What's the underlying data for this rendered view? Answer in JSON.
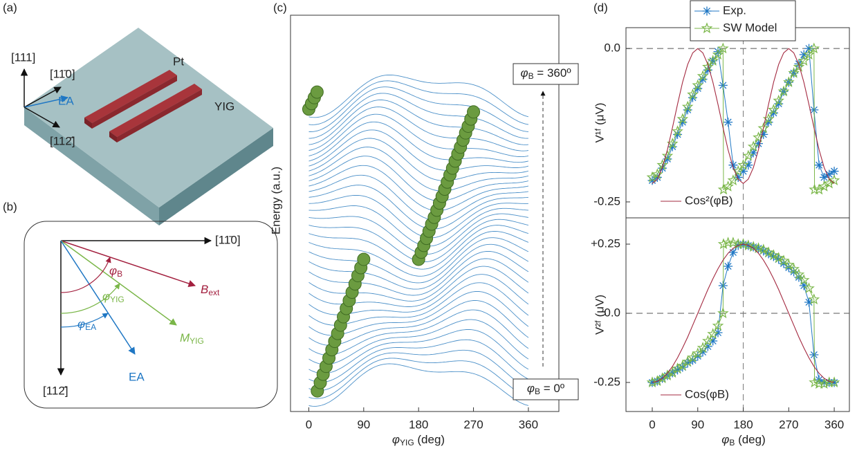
{
  "panel_a": {
    "label": "(a)",
    "axis_111": "[111]",
    "axis_110": "[11̄0]",
    "axis_112": "[112̄]",
    "ea": "EA",
    "pt": "Pt",
    "yig": "YIG"
  },
  "panel_b": {
    "label": "(b)",
    "axis_110": "[11̄0]",
    "axis_112": "[112̄]",
    "phi_b": {
      "main": "φ",
      "sub": "B"
    },
    "b_ext": {
      "main": "B",
      "sub": "ext"
    },
    "phi_yig": {
      "main": "φ",
      "sub": "YIG"
    },
    "m_yig": {
      "main": "M",
      "sub": "YIG"
    },
    "phi_ea": {
      "main": "φ",
      "sub": "EA"
    },
    "ea": "EA"
  },
  "chart_data": [
    {
      "type": "scatter",
      "label": "(c)",
      "y_label": "Energy (a.u.)",
      "x_label": {
        "main": "φ",
        "sub": "YIG",
        "rest": " (deg)"
      },
      "annotations": [
        {
          "main": "φ",
          "sub": "B",
          "rest": " = 360º"
        },
        {
          "main": "φ",
          "sub": "B",
          "rest": " = 0º"
        }
      ],
      "x": [
        14,
        18.8,
        23.5,
        28.3,
        33,
        37.8,
        42.5,
        47.3,
        52,
        56.8,
        61.5,
        66.3,
        71,
        75.8,
        80.5,
        85.3,
        90,
        180,
        184.3,
        188.6,
        192.9,
        197.1,
        201.4,
        205.7,
        210,
        214.3,
        218.6,
        222.9,
        227.1,
        231.4,
        235.7,
        240,
        244.3,
        248.6,
        252.9,
        257.1,
        261.4,
        265.7,
        270,
        0,
        4.5,
        9,
        13.5
      ],
      "y": [
        5.2,
        7.3,
        9.4,
        11.4,
        13.5,
        15.6,
        17.7,
        19.7,
        21.8,
        23.9,
        26,
        28,
        30.1,
        32.2,
        34.3,
        36.3,
        38.4,
        38.4,
        40.2,
        41.9,
        43.7,
        45.5,
        47.3,
        49,
        50.8,
        52.6,
        54.3,
        56.1,
        57.9,
        59.7,
        61.4,
        63.2,
        65,
        66.7,
        68.5,
        70.3,
        72,
        73.8,
        75.6,
        76.3,
        77.7,
        79.2,
        80.6
      ],
      "color": "#6b9b40",
      "curve_color": "#4a8fc8",
      "xlim": [
        -30,
        410
      ],
      "ylim": [
        0,
        100
      ],
      "xticks": [
        0,
        90,
        180,
        270,
        360
      ]
    },
    {
      "type": "line",
      "label": "(d)",
      "y_label": "V¹ᶠ (μV)",
      "xlim": [
        -52,
        390
      ],
      "ylim": [
        -0.276,
        0.034
      ],
      "yticks": [
        {
          "value": 0,
          "label": "0.0"
        },
        -0.25
      ],
      "hline": 0,
      "vline": 180,
      "series": [
        {
          "name": "Exp.",
          "color": "#1f77c4",
          "marker": "asterisk",
          "x": [
            0,
            10,
            20,
            30,
            40,
            50,
            60,
            70,
            80,
            90,
            100,
            110,
            120,
            130,
            140,
            150,
            160,
            170,
            180,
            190,
            200,
            210,
            220,
            230,
            240,
            250,
            260,
            270,
            280,
            290,
            300,
            310,
            320,
            330,
            340,
            350,
            360
          ],
          "values": [
            -0.215,
            -0.21,
            -0.195,
            -0.18,
            -0.16,
            -0.14,
            -0.12,
            -0.1,
            -0.08,
            -0.065,
            -0.05,
            -0.035,
            -0.02,
            -0.005,
            -0.06,
            -0.12,
            -0.19,
            -0.21,
            -0.2,
            -0.19,
            -0.17,
            -0.155,
            -0.14,
            -0.12,
            -0.105,
            -0.09,
            -0.07,
            -0.055,
            -0.04,
            -0.025,
            -0.01,
            0,
            -0.1,
            -0.19,
            -0.21,
            -0.205,
            -0.2
          ]
        },
        {
          "name": "SW Model",
          "color": "#7ab648",
          "marker": "star",
          "x": [
            0,
            10,
            20,
            30,
            40,
            50,
            60,
            70,
            80,
            90,
            100,
            110,
            120,
            130,
            140,
            141,
            150,
            160,
            170,
            180,
            190,
            200,
            210,
            220,
            230,
            240,
            250,
            260,
            270,
            280,
            290,
            300,
            310,
            320,
            321,
            330,
            340,
            350,
            360
          ],
          "values": [
            -0.21,
            -0.205,
            -0.19,
            -0.175,
            -0.155,
            -0.135,
            -0.115,
            -0.095,
            -0.075,
            -0.06,
            -0.045,
            -0.03,
            -0.02,
            -0.01,
            0,
            -0.23,
            -0.225,
            -0.215,
            -0.2,
            -0.19,
            -0.175,
            -0.16,
            -0.145,
            -0.13,
            -0.115,
            -0.1,
            -0.085,
            -0.07,
            -0.055,
            -0.04,
            -0.03,
            -0.02,
            -0.01,
            0,
            -0.23,
            -0.23,
            -0.225,
            -0.22,
            -0.215
          ]
        },
        {
          "name": "Cos²(φB)",
          "color": "#a3283f",
          "x": [
            0,
            10,
            20,
            30,
            40,
            50,
            60,
            70,
            80,
            90,
            100,
            110,
            120,
            130,
            140,
            150,
            160,
            170,
            180,
            190,
            200,
            210,
            220,
            230,
            240,
            250,
            260,
            270,
            280,
            290,
            300,
            310,
            320,
            330,
            340,
            350,
            360
          ],
          "values": [
            -0.22,
            -0.213,
            -0.194,
            -0.165,
            -0.129,
            -0.091,
            -0.055,
            -0.026,
            -0.007,
            0,
            -0.007,
            -0.026,
            -0.055,
            -0.091,
            -0.129,
            -0.165,
            -0.194,
            -0.213,
            -0.22,
            -0.213,
            -0.194,
            -0.165,
            -0.129,
            -0.091,
            -0.055,
            -0.026,
            -0.007,
            0,
            -0.007,
            -0.026,
            -0.055,
            -0.091,
            -0.129,
            -0.165,
            -0.194,
            -0.213,
            -0.22
          ]
        }
      ]
    },
    {
      "type": "line",
      "y_label": "V²ᶠ (μV)",
      "x_label": {
        "main": "φ",
        "sub": "B",
        "rest": " (deg)"
      },
      "xlim": [
        -52,
        390
      ],
      "ylim": [
        -0.355,
        0.345
      ],
      "yticks": [
        {
          "value": 0.25,
          "label": "+0.25"
        },
        {
          "value": 0,
          "label": "0.0"
        },
        -0.25
      ],
      "xticks": [
        0,
        90,
        180,
        270,
        360
      ],
      "hline": 0,
      "vline": 180,
      "series": [
        {
          "color": "#1f77c4",
          "marker": "asterisk",
          "x": [
            0,
            10,
            20,
            30,
            40,
            50,
            60,
            70,
            80,
            90,
            100,
            110,
            120,
            130,
            140,
            150,
            160,
            170,
            180,
            190,
            200,
            210,
            220,
            230,
            240,
            250,
            260,
            270,
            280,
            290,
            300,
            310,
            320,
            330,
            340,
            350,
            360
          ],
          "values": [
            -0.25,
            -0.245,
            -0.235,
            -0.225,
            -0.215,
            -0.205,
            -0.195,
            -0.18,
            -0.17,
            -0.155,
            -0.14,
            -0.12,
            -0.1,
            -0.07,
            0.1,
            0.17,
            0.22,
            0.245,
            0.25,
            0.245,
            0.24,
            0.235,
            0.225,
            0.215,
            0.205,
            0.195,
            0.18,
            0.165,
            0.15,
            0.13,
            0.1,
            0.04,
            -0.15,
            -0.24,
            -0.25,
            -0.25,
            -0.25
          ]
        },
        {
          "color": "#7ab648",
          "marker": "star",
          "x": [
            0,
            10,
            20,
            30,
            40,
            50,
            60,
            70,
            80,
            90,
            100,
            110,
            120,
            130,
            140,
            141,
            150,
            160,
            170,
            180,
            190,
            200,
            210,
            220,
            230,
            240,
            250,
            260,
            270,
            280,
            290,
            300,
            310,
            320,
            321,
            330,
            340,
            350,
            360
          ],
          "values": [
            -0.25,
            -0.245,
            -0.235,
            -0.225,
            -0.215,
            -0.2,
            -0.19,
            -0.175,
            -0.16,
            -0.145,
            -0.125,
            -0.1,
            -0.075,
            -0.045,
            0,
            0.25,
            0.255,
            0.255,
            0.25,
            0.25,
            0.245,
            0.24,
            0.235,
            0.23,
            0.22,
            0.21,
            0.2,
            0.19,
            0.175,
            0.16,
            0.14,
            0.12,
            0.09,
            0.05,
            -0.25,
            -0.255,
            -0.255,
            -0.25,
            -0.25
          ]
        },
        {
          "name": "Cos(φB)",
          "color": "#a3283f",
          "x": [
            0,
            10,
            20,
            30,
            40,
            50,
            60,
            70,
            80,
            90,
            100,
            110,
            120,
            130,
            140,
            150,
            160,
            170,
            180,
            190,
            200,
            210,
            220,
            230,
            240,
            250,
            260,
            270,
            280,
            290,
            300,
            310,
            320,
            330,
            340,
            350,
            360
          ],
          "values": [
            -0.25,
            -0.246,
            -0.235,
            -0.217,
            -0.192,
            -0.161,
            -0.125,
            -0.086,
            -0.043,
            0,
            0.043,
            0.086,
            0.125,
            0.161,
            0.192,
            0.217,
            0.235,
            0.246,
            0.25,
            0.246,
            0.235,
            0.217,
            0.192,
            0.161,
            0.125,
            0.086,
            0.043,
            0,
            -0.043,
            -0.086,
            -0.125,
            -0.161,
            -0.192,
            -0.217,
            -0.235,
            -0.246,
            -0.25
          ]
        }
      ]
    }
  ]
}
